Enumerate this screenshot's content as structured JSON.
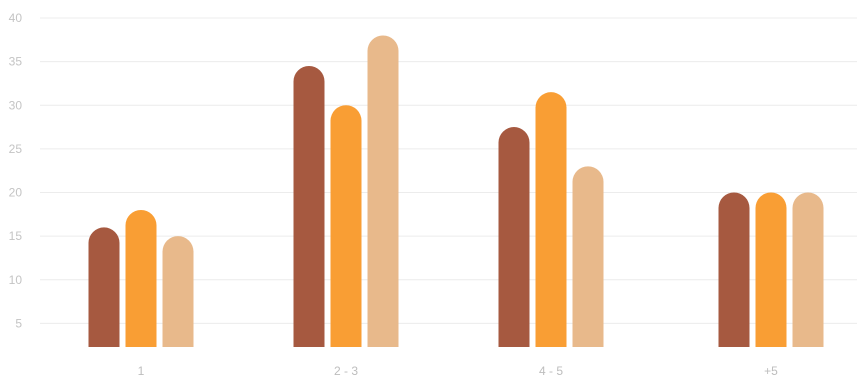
{
  "chart_data": {
    "type": "bar",
    "categories": [
      "1",
      "2 - 3",
      "4 - 5",
      "+5"
    ],
    "series": [
      {
        "values": [
          16,
          34.5,
          27.5,
          20
        ],
        "color": "#a65940"
      },
      {
        "values": [
          18,
          30,
          31.5,
          20
        ],
        "color": "#f99e34"
      },
      {
        "values": [
          15,
          38,
          23,
          20
        ],
        "color": "#e8b98b"
      }
    ],
    "ylim": [
      0,
      40
    ],
    "yticks": [
      5,
      10,
      15,
      20,
      25,
      30,
      35,
      40
    ],
    "ytick_labels": [
      "5",
      "10",
      "15",
      "20",
      "25",
      "30",
      "35",
      "40"
    ],
    "grid": true,
    "legend": "none",
    "title": "",
    "xlabel": "",
    "ylabel": ""
  }
}
